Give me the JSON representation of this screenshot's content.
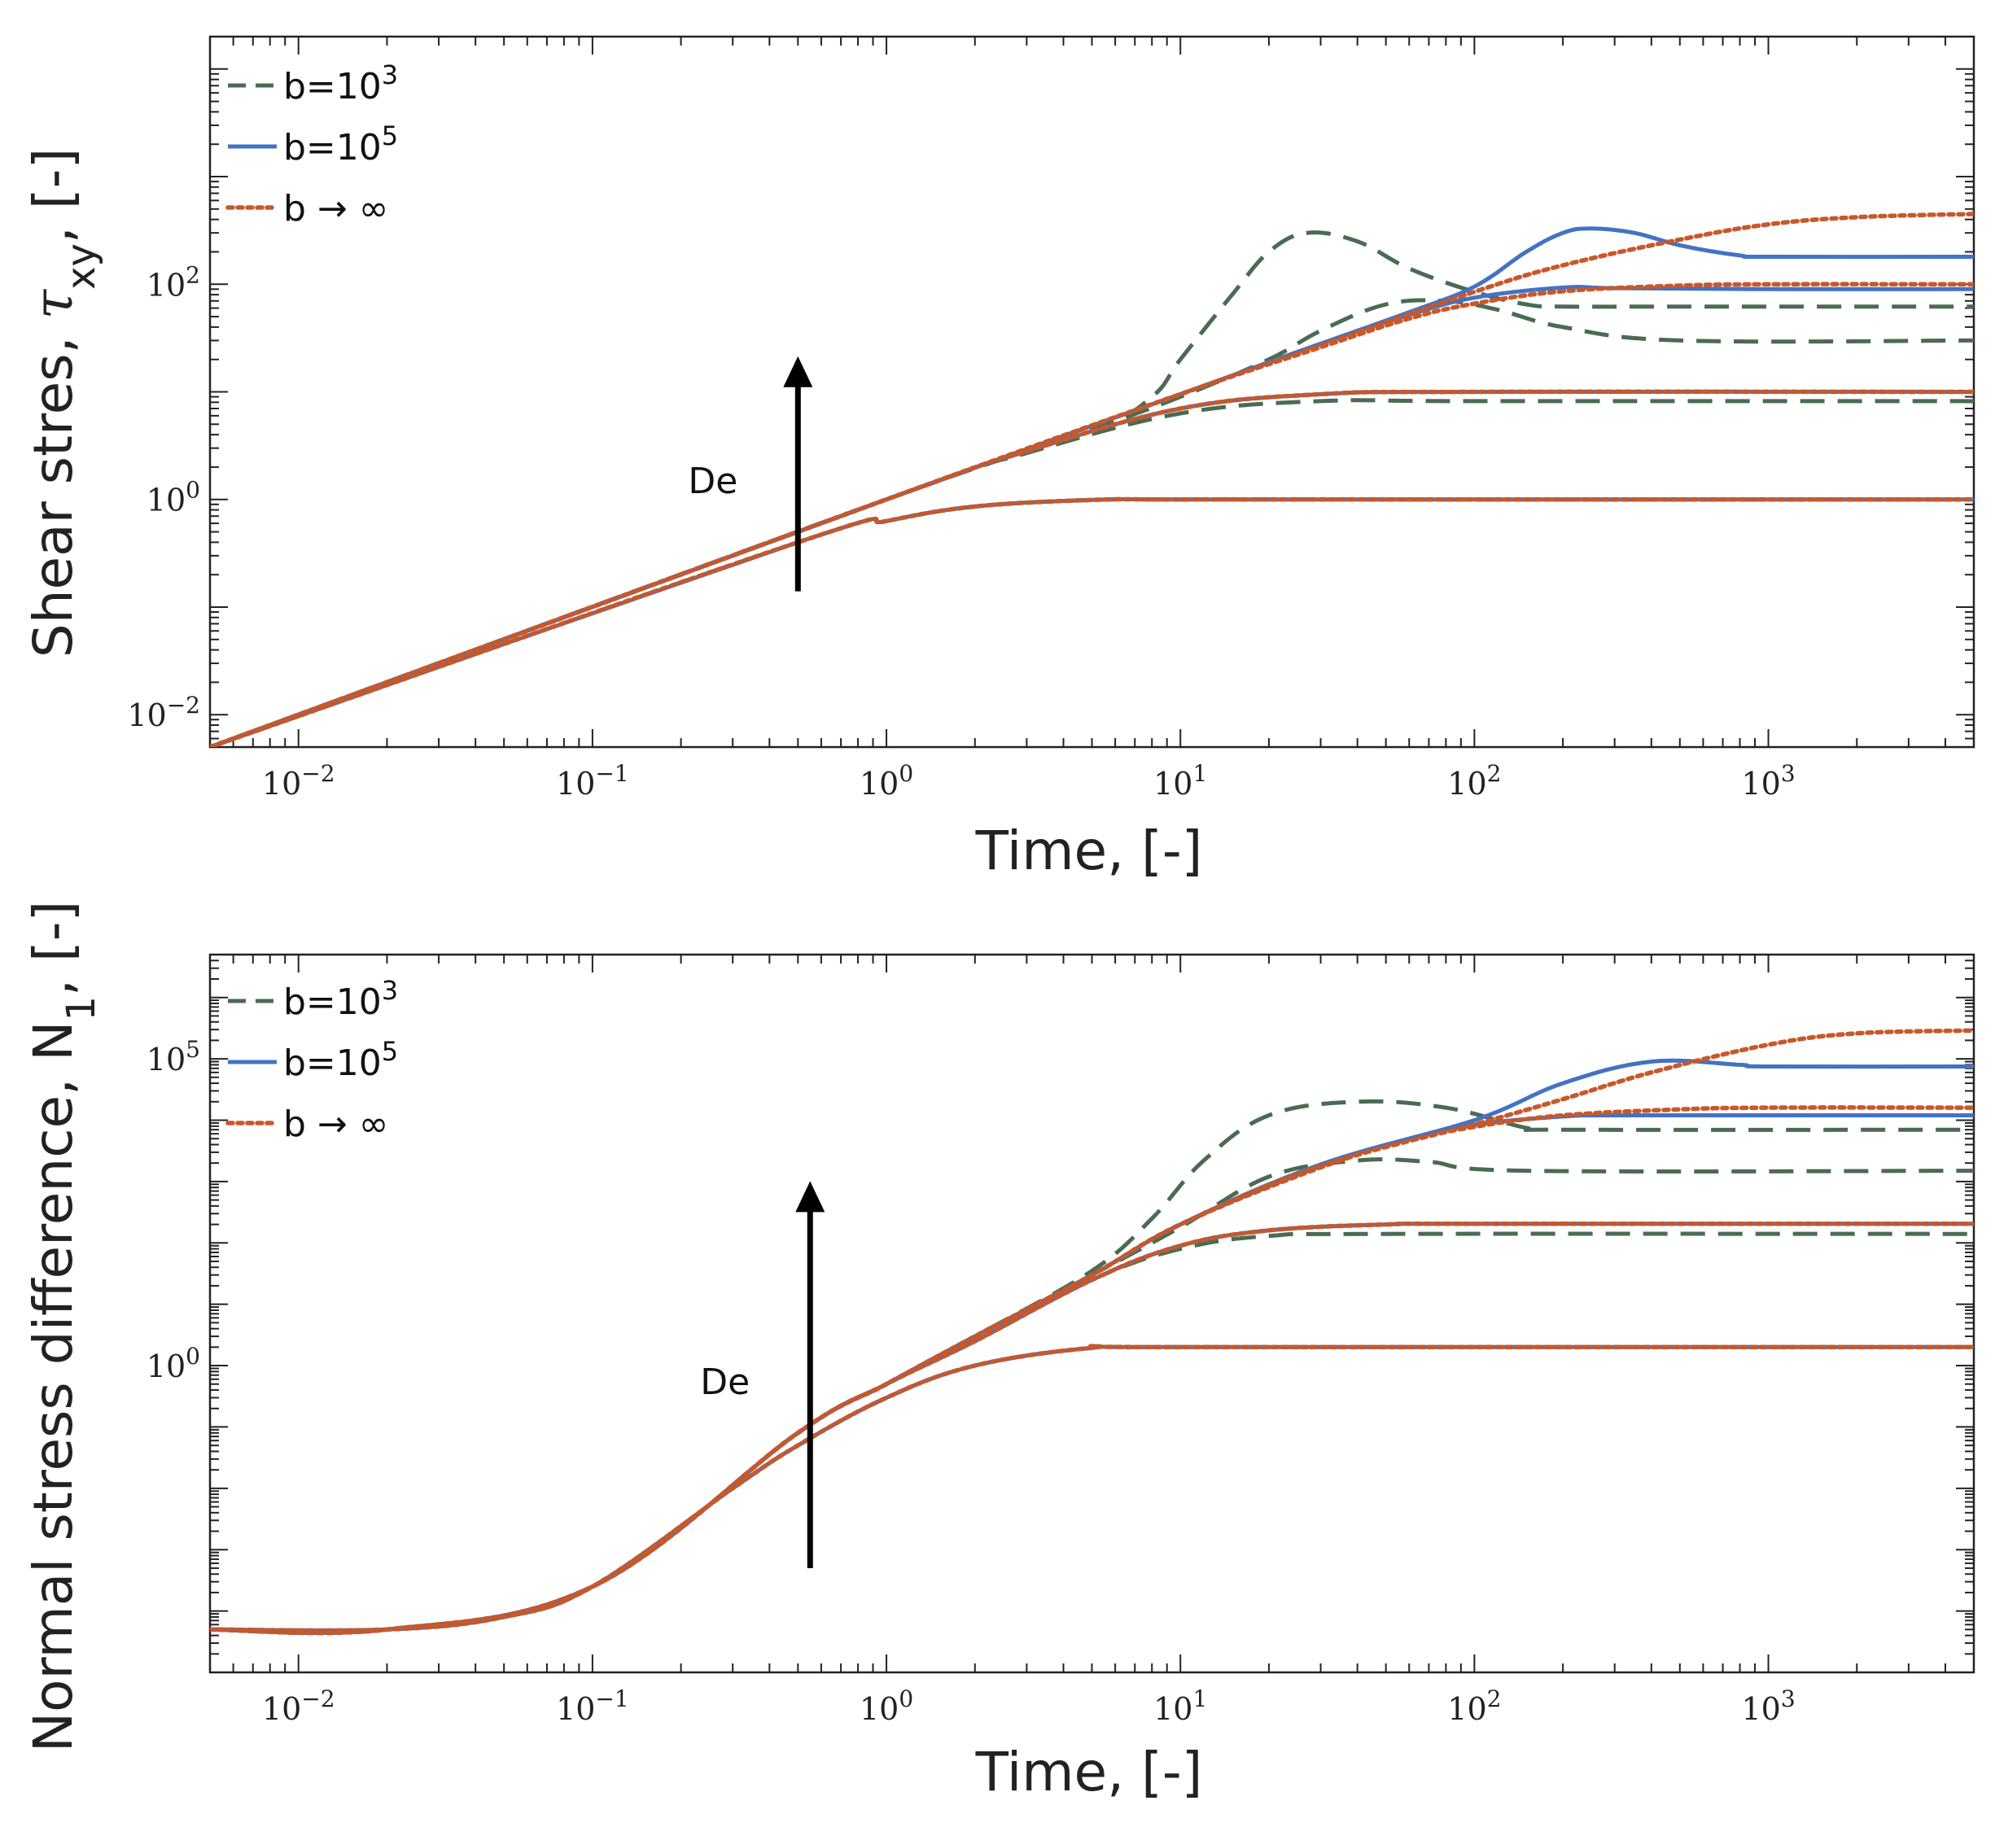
{
  "colors": {
    "b1e3": "#4a6b52",
    "b1e5": "#4472c4",
    "binf": "#c8582a",
    "axis": "#222222",
    "arrow": "#000000"
  },
  "chart_data": [
    {
      "type": "line",
      "id": "shear",
      "xlabel": "Time, [-]",
      "ylabel": {
        "main": "Shear stres, ",
        "symbol": "τ",
        "sub": "xy",
        "tail": ", [-]"
      },
      "xscale": "log",
      "yscale": "log",
      "xlim": [
        0.005,
        5000
      ],
      "ylim": [
        0.005,
        20000
      ],
      "xticks": [
        {
          "base": "10",
          "exp": "−2",
          "value": 0.01
        },
        {
          "base": "10",
          "exp": "−1",
          "value": 0.1
        },
        {
          "base": "10",
          "exp": "0",
          "value": 1
        },
        {
          "base": "10",
          "exp": "1",
          "value": 10
        },
        {
          "base": "10",
          "exp": "2",
          "value": 100
        },
        {
          "base": "10",
          "exp": "3",
          "value": 1000
        }
      ],
      "yticks": [
        {
          "base": "10",
          "exp": "−2",
          "value": 0.01
        },
        {
          "base": "10",
          "exp": "0",
          "value": 1
        },
        {
          "base": "10",
          "exp": "2",
          "value": 100
        }
      ],
      "legend": {
        "position": "top-left",
        "entries": [
          {
            "key": "b1e3",
            "base": "b=10",
            "sup": "3",
            "style": "dashed"
          },
          {
            "key": "b1e5",
            "base": "b=10",
            "sup": "5",
            "style": "solid"
          },
          {
            "key": "binf",
            "base": "b → ∞",
            "sup": "",
            "style": "dotted"
          }
        ]
      },
      "annotation": {
        "text": "De",
        "arrow_from_value": [
          0.5,
          0.14
        ],
        "arrow_to_value": [
          0.5,
          20
        ]
      },
      "series": [
        {
          "name": "b=10^3",
          "key": "b1e3",
          "De": 1,
          "x": [
            0.005,
            0.5,
            1,
            2,
            5,
            10,
            100,
            5000
          ],
          "y": [
            0.005,
            0.4,
            0.63,
            0.86,
            0.99,
            1.0,
            1.0,
            1.0
          ]
        },
        {
          "name": "b=10^5",
          "key": "b1e5",
          "De": 1,
          "x": [
            0.005,
            0.5,
            1,
            2,
            5,
            10,
            100,
            5000
          ],
          "y": [
            0.005,
            0.4,
            0.63,
            0.86,
            0.99,
            1.0,
            1.0,
            1.0
          ]
        },
        {
          "name": "b→∞",
          "key": "binf",
          "De": 1,
          "x": [
            0.005,
            0.5,
            1,
            2,
            5,
            10,
            100,
            5000
          ],
          "y": [
            0.005,
            0.4,
            0.63,
            0.86,
            0.99,
            1.0,
            1.0,
            1.0
          ]
        },
        {
          "name": "b=10^3",
          "key": "b1e3",
          "De": 10,
          "x": [
            0.005,
            1,
            3,
            10,
            30,
            100,
            5000
          ],
          "y": [
            0.005,
            1,
            2.7,
            6.3,
            8.2,
            8.2,
            8.2
          ]
        },
        {
          "name": "b=10^5",
          "key": "b1e5",
          "De": 10,
          "x": [
            0.005,
            1,
            3,
            10,
            30,
            100,
            5000
          ],
          "y": [
            0.005,
            1,
            2.8,
            7.0,
            9.5,
            10,
            10
          ]
        },
        {
          "name": "b→∞",
          "key": "binf",
          "De": 10,
          "x": [
            0.005,
            1,
            3,
            10,
            30,
            100,
            5000
          ],
          "y": [
            0.005,
            1,
            2.8,
            7.0,
            9.5,
            10,
            10
          ]
        },
        {
          "name": "b=10^3",
          "key": "b1e3",
          "De": 100,
          "x": [
            0.005,
            1,
            5,
            10,
            20,
            30,
            50,
            80,
            120,
            200,
            500,
            5000
          ],
          "y": [
            0.005,
            1,
            4.5,
            9,
            20,
            37,
            65,
            70,
            58,
            40,
            30,
            30
          ]
        },
        {
          "name": "b=10^5",
          "key": "b1e5",
          "De": 100,
          "x": [
            0.005,
            1,
            10,
            30,
            60,
            100,
            200,
            300,
            1000,
            5000
          ],
          "y": [
            0.005,
            1,
            9.5,
            28,
            52,
            75,
            93,
            92,
            90,
            90
          ]
        },
        {
          "name": "b→∞",
          "key": "binf",
          "De": 100,
          "x": [
            0.005,
            1,
            10,
            30,
            60,
            100,
            200,
            500,
            1000,
            5000
          ],
          "y": [
            0.005,
            1,
            9.5,
            26,
            48,
            66,
            86,
            97,
            100,
            100
          ]
        },
        {
          "name": "b=10^3",
          "key": "b1e3",
          "De": 1000,
          "x": [
            0.005,
            1,
            5,
            8,
            10,
            15,
            20,
            27,
            40,
            60,
            100,
            150,
            200,
            500,
            5000
          ],
          "y": [
            0.005,
            1,
            4.5,
            9,
            20,
            80,
            200,
            300,
            250,
            140,
            85,
            65,
            62,
            62,
            62
          ]
        },
        {
          "name": "b=10^5",
          "key": "b1e5",
          "De": 1000,
          "x": [
            0.005,
            1,
            10,
            30,
            60,
            100,
            150,
            200,
            250,
            350,
            500,
            800,
            1000,
            5000
          ],
          "y": [
            0.005,
            1,
            9.5,
            28,
            55,
            95,
            200,
            300,
            330,
            300,
            230,
            185,
            180,
            180
          ]
        },
        {
          "name": "b→∞",
          "key": "binf",
          "De": 1000,
          "x": [
            0.005,
            1,
            10,
            30,
            100,
            200,
            500,
            1000,
            2000,
            5000
          ],
          "y": [
            0.005,
            1,
            9.5,
            27,
            85,
            150,
            260,
            360,
            420,
            450
          ]
        }
      ]
    },
    {
      "type": "line",
      "id": "normal",
      "xlabel": "Time, [-]",
      "ylabel": {
        "main": "Normal stress difference, N",
        "symbol": "",
        "sub": "1",
        "tail": ", [-]"
      },
      "xscale": "log",
      "yscale": "log",
      "xlim": [
        0.005,
        5000
      ],
      "ylim": [
        1e-05,
        5000000
      ],
      "xticks": [
        {
          "base": "10",
          "exp": "−2",
          "value": 0.01
        },
        {
          "base": "10",
          "exp": "−1",
          "value": 0.1
        },
        {
          "base": "10",
          "exp": "0",
          "value": 1
        },
        {
          "base": "10",
          "exp": "1",
          "value": 10
        },
        {
          "base": "10",
          "exp": "2",
          "value": 100
        },
        {
          "base": "10",
          "exp": "3",
          "value": 1000
        }
      ],
      "yticks": [
        {
          "base": "10",
          "exp": "0",
          "value": 1
        },
        {
          "base": "10",
          "exp": "5",
          "value": 100000
        }
      ],
      "legend": {
        "position": "top-left",
        "entries": [
          {
            "key": "b1e3",
            "base": "b=10",
            "sup": "3",
            "style": "dashed"
          },
          {
            "key": "b1e5",
            "base": "b=10",
            "sup": "5",
            "style": "solid"
          },
          {
            "key": "binf",
            "base": "b → ∞",
            "sup": "",
            "style": "dotted"
          }
        ]
      },
      "annotation": {
        "text": "De",
        "arrow_from_value": [
          0.55,
          0.0005
        ],
        "arrow_to_value": [
          0.55,
          900
        ]
      },
      "series": [
        {
          "name": "b=10^3",
          "key": "b1e3",
          "De": 1,
          "x": [
            0.005,
            0.02,
            0.05,
            0.1,
            0.3,
            0.5,
            1,
            2,
            5,
            10,
            5000
          ],
          "y": [
            5e-05,
            5e-05,
            8e-05,
            0.00025,
            0.01,
            0.05,
            0.3,
            1.0,
            1.95,
            2.0,
            2.0
          ]
        },
        {
          "name": "b=10^5",
          "key": "b1e5",
          "De": 1,
          "x": [
            0.005,
            0.02,
            0.05,
            0.1,
            0.3,
            0.5,
            1,
            2,
            5,
            10,
            5000
          ],
          "y": [
            5e-05,
            5e-05,
            8e-05,
            0.00025,
            0.01,
            0.05,
            0.3,
            1.0,
            1.95,
            2.0,
            2.0
          ]
        },
        {
          "name": "b→∞",
          "key": "binf",
          "De": 1,
          "x": [
            0.005,
            0.02,
            0.05,
            0.1,
            0.3,
            0.5,
            1,
            2,
            5,
            10,
            5000
          ],
          "y": [
            5e-05,
            5e-05,
            8e-05,
            0.00025,
            0.01,
            0.05,
            0.3,
            1.0,
            1.95,
            2.0,
            2.0
          ]
        },
        {
          "name": "b=10^3",
          "key": "b1e3",
          "De": 10,
          "x": [
            0.005,
            0.02,
            0.1,
            0.5,
            1,
            2,
            5,
            10,
            20,
            50,
            5000
          ],
          "y": [
            5e-05,
            5e-05,
            0.00025,
            0.08,
            0.5,
            2.5,
            25,
            80,
            130,
            140,
            140
          ]
        },
        {
          "name": "b=10^5",
          "key": "b1e5",
          "De": 10,
          "x": [
            0.005,
            0.02,
            0.1,
            0.5,
            1,
            2,
            5,
            10,
            20,
            50,
            100,
            5000
          ],
          "y": [
            5e-05,
            5e-05,
            0.00025,
            0.08,
            0.5,
            2.5,
            25,
            90,
            160,
            200,
            205,
            205
          ]
        },
        {
          "name": "b→∞",
          "key": "binf",
          "De": 10,
          "x": [
            0.005,
            0.02,
            0.1,
            0.5,
            1,
            2,
            5,
            10,
            20,
            50,
            100,
            5000
          ],
          "y": [
            5e-05,
            5e-05,
            0.00025,
            0.08,
            0.5,
            2.5,
            25,
            90,
            160,
            200,
            205,
            205
          ]
        },
        {
          "name": "b=10^3",
          "key": "b1e3",
          "De": 100,
          "x": [
            0.005,
            0.02,
            0.1,
            0.5,
            1,
            2,
            5,
            10,
            20,
            40,
            70,
            150,
            5000
          ],
          "y": [
            5e-05,
            5e-05,
            0.00025,
            0.08,
            0.5,
            3,
            30,
            180,
            1200,
            2200,
            2100,
            1500,
            1500
          ]
        },
        {
          "name": "b=10^5",
          "key": "b1e5",
          "De": 100,
          "x": [
            0.005,
            0.02,
            0.1,
            0.5,
            1,
            2,
            5,
            10,
            30,
            60,
            100,
            200,
            300,
            1000,
            5000
          ],
          "y": [
            5e-05,
            5e-05,
            0.00025,
            0.08,
            0.5,
            3,
            30,
            200,
            1800,
            5000,
            8500,
            11500,
            12000,
            12000,
            12000
          ]
        },
        {
          "name": "b→∞",
          "key": "binf",
          "De": 100,
          "x": [
            0.005,
            0.02,
            0.1,
            0.5,
            1,
            2,
            5,
            10,
            30,
            60,
            100,
            200,
            500,
            1000,
            5000
          ],
          "y": [
            5e-05,
            5e-05,
            0.00025,
            0.08,
            0.5,
            3,
            30,
            200,
            1700,
            4600,
            7800,
            12000,
            15000,
            16000,
            16000
          ]
        },
        {
          "name": "b=10^3",
          "key": "b1e3",
          "De": 1000,
          "x": [
            0.005,
            0.02,
            0.1,
            0.5,
            1,
            2,
            5,
            8,
            12,
            20,
            40,
            80,
            150,
            200,
            5000
          ],
          "y": [
            5e-05,
            5e-05,
            0.00025,
            0.08,
            0.5,
            3,
            35,
            250,
            2200,
            12000,
            20000,
            16000,
            7500,
            7000,
            7000
          ]
        },
        {
          "name": "b=10^5",
          "key": "b1e5",
          "De": 1000,
          "x": [
            0.005,
            0.02,
            0.1,
            0.5,
            1,
            2,
            5,
            10,
            30,
            100,
            200,
            400,
            800,
            1000,
            5000
          ],
          "y": [
            5e-05,
            5e-05,
            0.00025,
            0.08,
            0.5,
            3,
            30,
            200,
            1900,
            10000,
            40000,
            90000,
            80000,
            75000,
            75000
          ]
        },
        {
          "name": "b→∞",
          "key": "binf",
          "De": 1000,
          "x": [
            0.005,
            0.02,
            0.1,
            0.5,
            1,
            2,
            5,
            10,
            30,
            100,
            200,
            400,
            1000,
            2000,
            5000
          ],
          "y": [
            5e-05,
            5e-05,
            0.00025,
            0.08,
            0.5,
            3,
            30,
            200,
            1800,
            8500,
            22000,
            60000,
            170000,
            260000,
            290000
          ]
        }
      ]
    }
  ]
}
